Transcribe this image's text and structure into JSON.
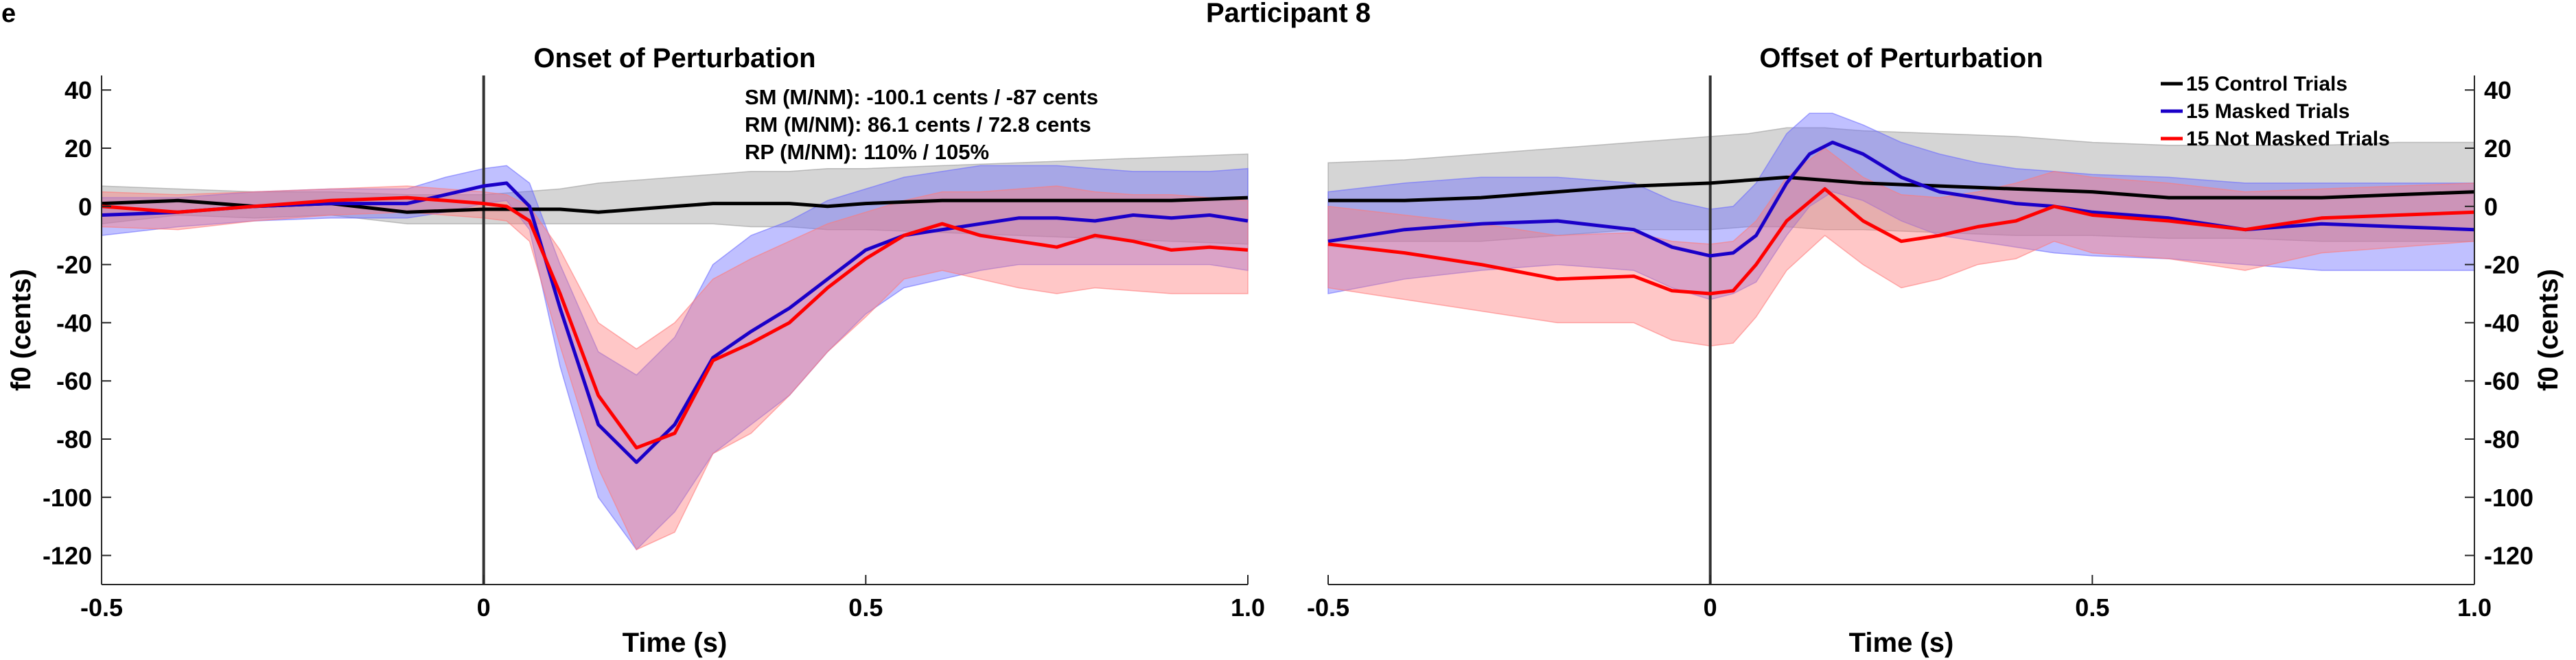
{
  "figure": {
    "panel_letter": "e",
    "title": "Participant 8"
  },
  "colors": {
    "control": "#000000",
    "masked": "#1a00c8",
    "not_masked": "#ff0000",
    "control_band": "#9a9a9a",
    "masked_band": "#6a6aff",
    "not_masked_band": "#ff7a7a",
    "axis": "#262626",
    "vline": "#333333"
  },
  "chart_data": [
    {
      "type": "line",
      "title": "Onset of Perturbation",
      "xlabel": "Time (s)",
      "ylabel": "f0 (cents)",
      "xlim": [
        -0.5,
        1.0
      ],
      "ylim": [
        -130,
        45
      ],
      "xticks": [
        -0.5,
        0,
        0.5,
        1.0
      ],
      "xtick_labels": [
        "-0.5",
        "0",
        "0.5",
        "1.0"
      ],
      "yticks": [
        40,
        20,
        0,
        -20,
        -40,
        -60,
        -80,
        -100,
        -120
      ],
      "ytick_labels": [
        "40",
        "20",
        "0",
        "-20",
        "-40",
        "-60",
        "-80",
        "-100",
        "-120"
      ],
      "y_axis_side": "left",
      "grid": false,
      "vline_x": 0,
      "annotations": [
        "SM (M/NM): -100.1 cents / -87 cents",
        "RM (M/NM): 86.1 cents / 72.8 cents",
        "RP (M/NM): 110% / 105%"
      ],
      "series": [
        {
          "key": "control",
          "x": [
            -0.5,
            -0.4,
            -0.3,
            -0.2,
            -0.1,
            0,
            0.05,
            0.1,
            0.15,
            0.2,
            0.25,
            0.3,
            0.35,
            0.4,
            0.45,
            0.5,
            0.6,
            0.7,
            0.8,
            0.9,
            1.0
          ],
          "y": [
            1,
            2,
            0,
            1,
            -2,
            -1,
            -1,
            -1,
            -2,
            -1,
            0,
            1,
            1,
            1,
            0,
            1,
            2,
            2,
            2,
            2,
            3
          ],
          "band_upper": [
            7,
            6,
            5,
            5,
            4,
            4,
            5,
            6,
            8,
            9,
            10,
            11,
            12,
            12,
            13,
            13,
            14,
            15,
            16,
            17,
            18
          ],
          "band_lower": [
            -6,
            -3,
            -4,
            -3,
            -6,
            -6,
            -6,
            -6,
            -6,
            -6,
            -6,
            -6,
            -7,
            -7,
            -8,
            -8,
            -9,
            -10,
            -11,
            -12,
            -13
          ]
        },
        {
          "key": "masked",
          "x": [
            -0.5,
            -0.4,
            -0.3,
            -0.2,
            -0.1,
            -0.05,
            0,
            0.03,
            0.06,
            0.1,
            0.15,
            0.2,
            0.25,
            0.3,
            0.35,
            0.4,
            0.45,
            0.5,
            0.55,
            0.6,
            0.65,
            0.7,
            0.75,
            0.8,
            0.85,
            0.9,
            0.95,
            1.0
          ],
          "y": [
            -3,
            -2,
            0,
            1,
            1,
            4,
            7,
            8,
            0,
            -35,
            -75,
            -88,
            -75,
            -52,
            -43,
            -35,
            -25,
            -15,
            -10,
            -8,
            -6,
            -4,
            -4,
            -5,
            -3,
            -4,
            -3,
            -5
          ],
          "band_upper": [
            3,
            3,
            5,
            6,
            6,
            10,
            13,
            14,
            8,
            -20,
            -50,
            -58,
            -45,
            -20,
            -10,
            -5,
            2,
            6,
            10,
            12,
            14,
            14,
            14,
            13,
            12,
            12,
            12,
            13
          ],
          "band_lower": [
            -10,
            -7,
            -5,
            -4,
            -4,
            -2,
            1,
            2,
            -8,
            -55,
            -100,
            -118,
            -105,
            -85,
            -75,
            -65,
            -50,
            -37,
            -28,
            -25,
            -22,
            -20,
            -20,
            -20,
            -20,
            -20,
            -20,
            -22
          ]
        },
        {
          "key": "not_masked",
          "x": [
            -0.5,
            -0.4,
            -0.3,
            -0.2,
            -0.1,
            -0.05,
            0,
            0.03,
            0.06,
            0.1,
            0.15,
            0.2,
            0.25,
            0.3,
            0.35,
            0.4,
            0.45,
            0.5,
            0.55,
            0.6,
            0.65,
            0.7,
            0.75,
            0.8,
            0.85,
            0.9,
            0.95,
            1.0
          ],
          "y": [
            0,
            -2,
            0,
            2,
            3,
            2,
            1,
            0,
            -5,
            -30,
            -65,
            -83,
            -78,
            -53,
            -47,
            -40,
            -28,
            -18,
            -10,
            -6,
            -10,
            -12,
            -14,
            -10,
            -12,
            -15,
            -14,
            -15
          ],
          "band_upper": [
            5,
            4,
            5,
            6,
            7,
            6,
            5,
            4,
            0,
            -15,
            -40,
            -49,
            -40,
            -25,
            -18,
            -12,
            -6,
            -2,
            2,
            5,
            5,
            6,
            7,
            5,
            4,
            4,
            3,
            2
          ],
          "band_lower": [
            -7,
            -8,
            -5,
            -3,
            -2,
            -3,
            -4,
            -5,
            -12,
            -48,
            -90,
            -118,
            -112,
            -85,
            -78,
            -65,
            -50,
            -38,
            -25,
            -22,
            -25,
            -28,
            -30,
            -28,
            -29,
            -30,
            -30,
            -30
          ]
        }
      ]
    },
    {
      "type": "line",
      "title": "Offset of Perturbation",
      "xlabel": "Time (s)",
      "ylabel": "f0 (cents)",
      "xlim": [
        -0.5,
        1.0
      ],
      "ylim": [
        -130,
        45
      ],
      "xticks": [
        -0.5,
        0,
        0.5,
        1.0
      ],
      "xtick_labels": [
        "-0.5",
        "0",
        "0.5",
        "1.0"
      ],
      "yticks": [
        40,
        20,
        0,
        -20,
        -40,
        -60,
        -80,
        -100,
        -120
      ],
      "ytick_labels": [
        "40",
        "20",
        "0",
        "-20",
        "-40",
        "-60",
        "-80",
        "-100",
        "-120"
      ],
      "y_axis_side": "right",
      "grid": false,
      "vline_x": 0,
      "legend": {
        "placement": "top-right",
        "entries": [
          {
            "key": "control",
            "label": "15 Control Trials"
          },
          {
            "key": "masked",
            "label": "15 Masked Trials"
          },
          {
            "key": "not_masked",
            "label": "15 Not Masked Trials"
          }
        ]
      },
      "series": [
        {
          "key": "control",
          "name": "15 Control Trials",
          "x": [
            -0.5,
            -0.4,
            -0.3,
            -0.2,
            -0.1,
            0,
            0.05,
            0.1,
            0.15,
            0.2,
            0.3,
            0.4,
            0.5,
            0.6,
            0.7,
            0.8,
            0.9,
            1.0
          ],
          "y": [
            2,
            2,
            3,
            5,
            7,
            8,
            9,
            10,
            9,
            8,
            7,
            6,
            5,
            3,
            3,
            3,
            4,
            5
          ],
          "band_upper": [
            15,
            16,
            18,
            20,
            22,
            24,
            25,
            27,
            27,
            26,
            25,
            24,
            22,
            21,
            21,
            21,
            22,
            22
          ],
          "band_lower": [
            -12,
            -12,
            -12,
            -10,
            -8,
            -8,
            -7,
            -7,
            -8,
            -8,
            -9,
            -10,
            -10,
            -11,
            -11,
            -12,
            -12,
            -12
          ]
        },
        {
          "key": "masked",
          "name": "15 Masked Trials",
          "x": [
            -0.5,
            -0.4,
            -0.3,
            -0.2,
            -0.1,
            -0.05,
            0,
            0.03,
            0.06,
            0.1,
            0.13,
            0.16,
            0.2,
            0.25,
            0.3,
            0.35,
            0.4,
            0.45,
            0.5,
            0.6,
            0.7,
            0.8,
            0.9,
            1.0
          ],
          "y": [
            -12,
            -8,
            -6,
            -5,
            -8,
            -14,
            -17,
            -16,
            -10,
            8,
            18,
            22,
            18,
            10,
            5,
            3,
            1,
            0,
            -2,
            -4,
            -8,
            -6,
            -7,
            -8
          ],
          "band_upper": [
            5,
            8,
            10,
            10,
            8,
            2,
            -1,
            0,
            8,
            25,
            32,
            32,
            28,
            22,
            18,
            15,
            13,
            12,
            11,
            10,
            8,
            8,
            8,
            8
          ],
          "band_lower": [
            -30,
            -25,
            -22,
            -20,
            -22,
            -28,
            -32,
            -30,
            -26,
            -10,
            0,
            5,
            2,
            -5,
            -10,
            -12,
            -14,
            -16,
            -17,
            -18,
            -20,
            -22,
            -22,
            -22
          ]
        },
        {
          "key": "not_masked",
          "name": "15 Not Masked Trials",
          "x": [
            -0.5,
            -0.4,
            -0.3,
            -0.2,
            -0.1,
            -0.05,
            0,
            0.03,
            0.06,
            0.1,
            0.15,
            0.2,
            0.25,
            0.3,
            0.35,
            0.4,
            0.45,
            0.5,
            0.6,
            0.7,
            0.8,
            0.9,
            1.0
          ],
          "y": [
            -13,
            -16,
            -20,
            -25,
            -24,
            -29,
            -30,
            -29,
            -20,
            -5,
            6,
            -5,
            -12,
            -10,
            -7,
            -5,
            0,
            -3,
            -5,
            -8,
            -4,
            -3,
            -2
          ],
          "band_upper": [
            0,
            -3,
            -6,
            -10,
            -9,
            -12,
            -13,
            -12,
            -5,
            10,
            20,
            10,
            4,
            3,
            5,
            8,
            12,
            10,
            8,
            5,
            6,
            7,
            8
          ],
          "band_lower": [
            -28,
            -32,
            -36,
            -40,
            -40,
            -46,
            -48,
            -47,
            -38,
            -22,
            -10,
            -20,
            -28,
            -25,
            -20,
            -18,
            -12,
            -16,
            -18,
            -22,
            -16,
            -14,
            -12
          ]
        }
      ]
    }
  ]
}
